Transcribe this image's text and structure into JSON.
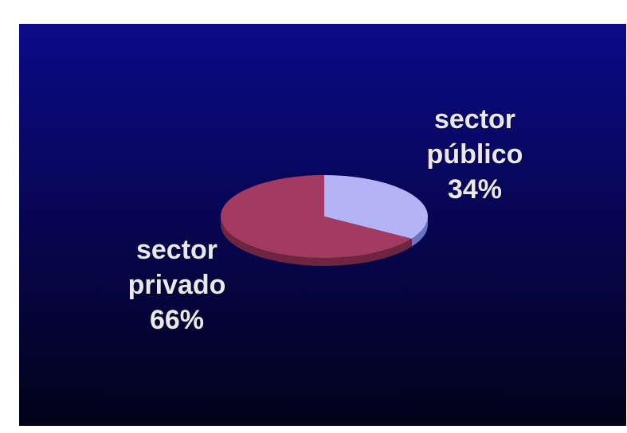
{
  "chart_data": {
    "type": "pie",
    "style": "3d",
    "title": "",
    "slices": [
      {
        "label": "sector público",
        "value": 34,
        "value_label": "34%",
        "color": "#b2b4f6",
        "side_color": "#6e70c0"
      },
      {
        "label": "sector privado",
        "value": 66,
        "value_label": "66%",
        "color": "#a33a62",
        "side_color": "#6f2540"
      }
    ],
    "legend": "none",
    "background": {
      "top_color": "#0c0a88",
      "bottom_color": "#02021a"
    },
    "label_color": "#e9e9ec"
  },
  "labels": {
    "publico": {
      "line1": "sector",
      "line2": "público",
      "value": "34%"
    },
    "privado": {
      "line1": "sector",
      "line2": "privado",
      "value": "66%"
    }
  }
}
